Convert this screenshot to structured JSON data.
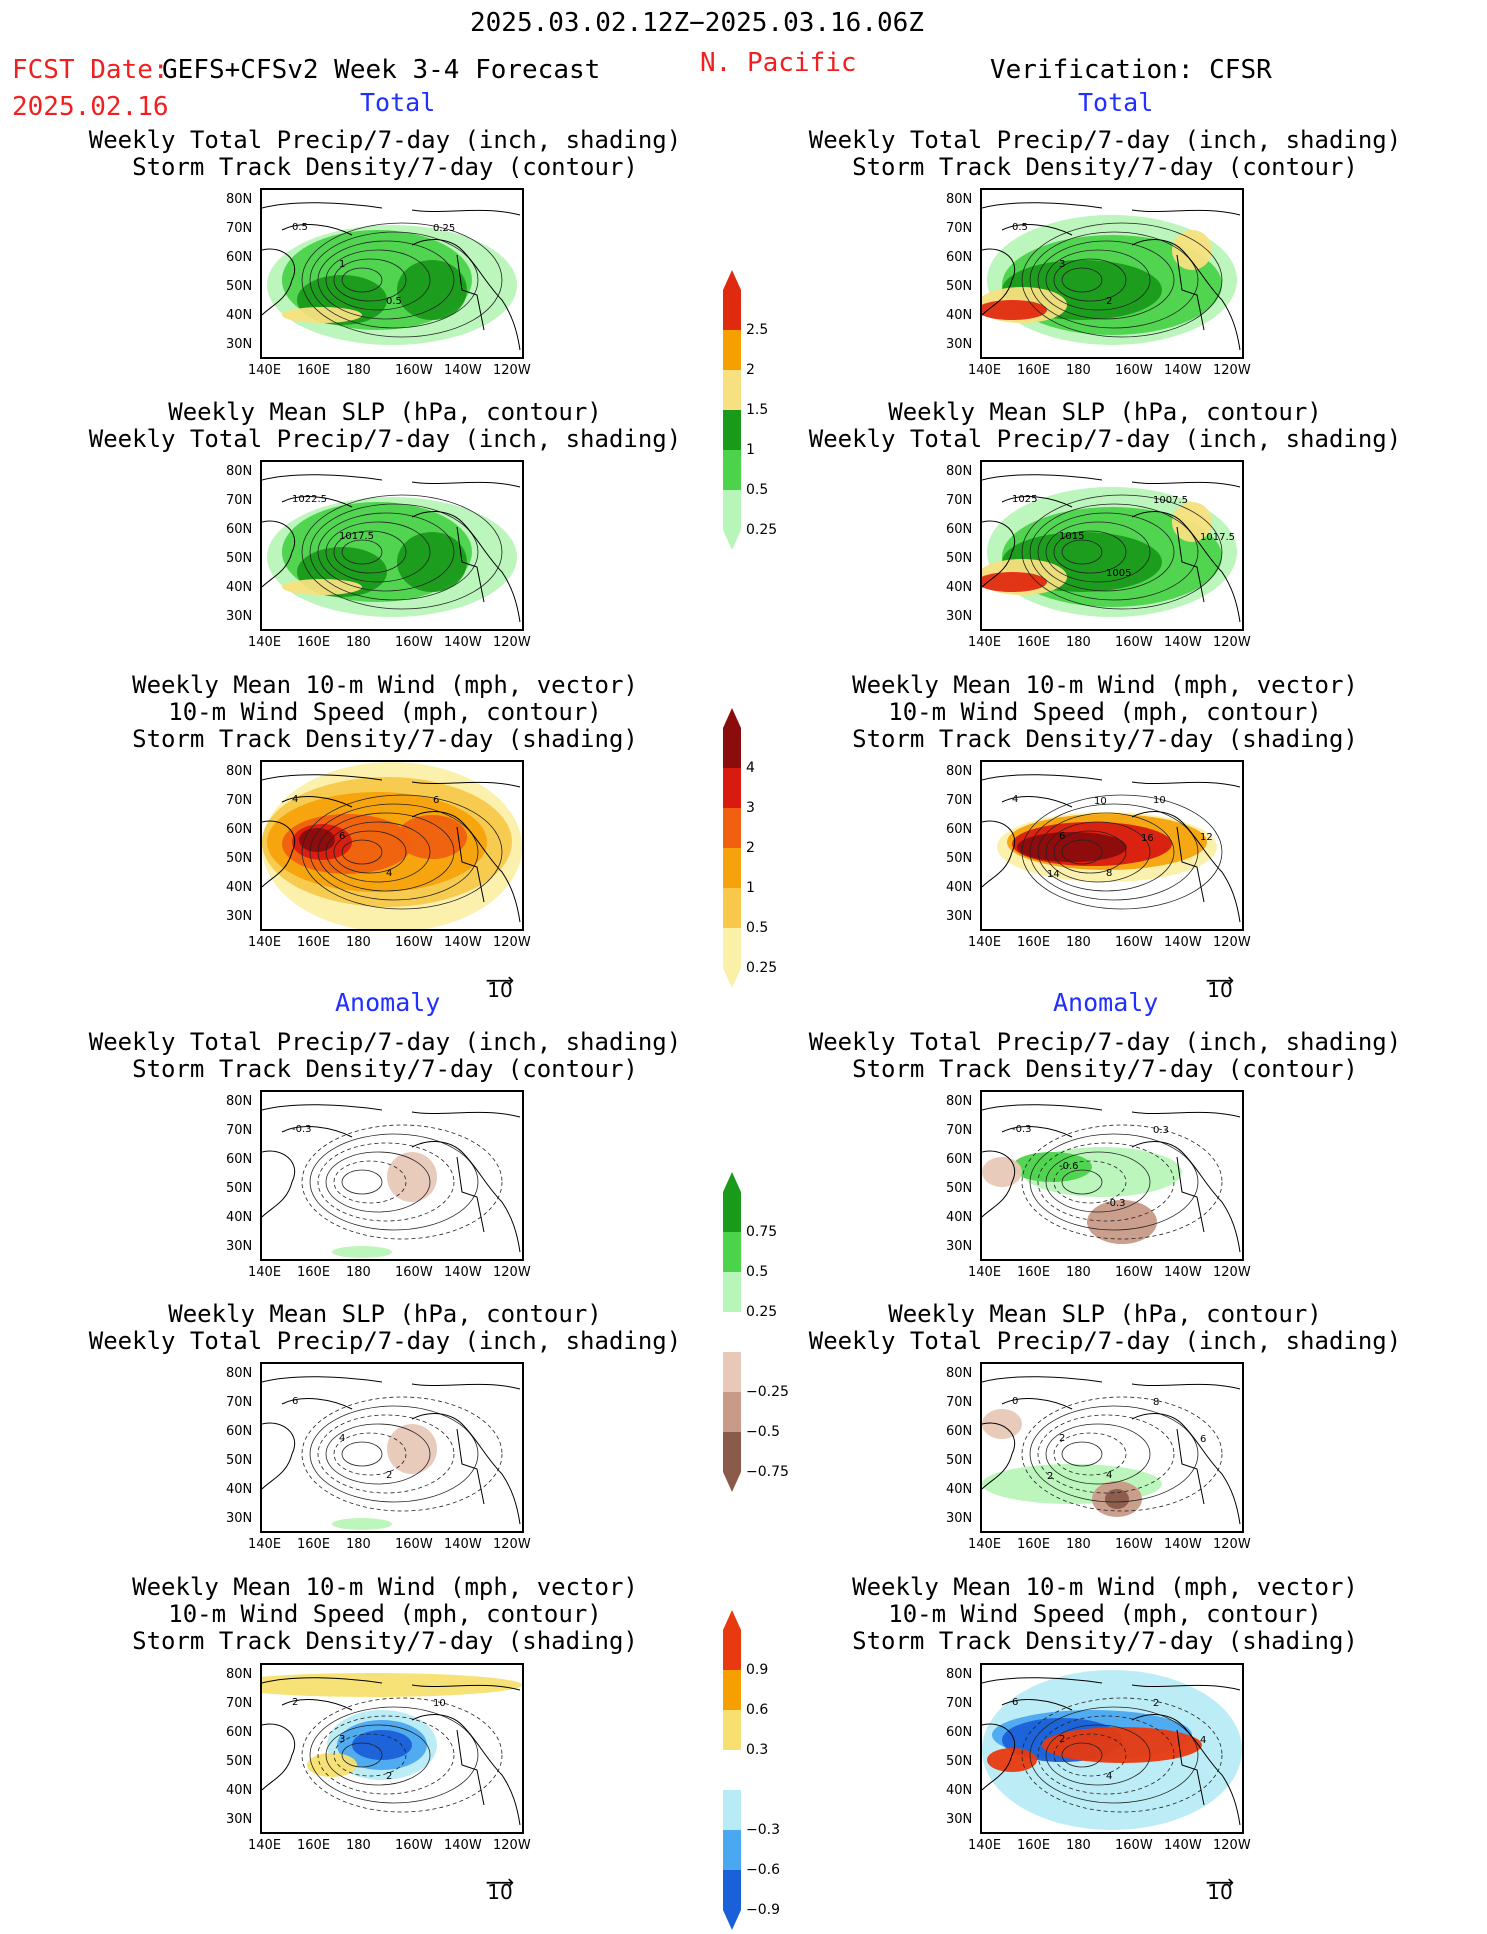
{
  "header": {
    "date_range": "2025.03.02.12Z−2025.03.16.06Z",
    "fcst_label": "FCST Date:",
    "fcst_model": "GEFS+CFSv2 Week 3-4 Forecast",
    "fcst_date": "2025.02.16",
    "region": "N. Pacific",
    "verification": "Verification: CFSR"
  },
  "sections": {
    "total": "Total",
    "anomaly": "Anomaly"
  },
  "titles": {
    "precip_storm": "Weekly Total Precip/7-day (inch, shading)\nStorm Track Density/7-day (contour)",
    "slp_precip": "Weekly Mean SLP (hPa, contour)\nWeekly Total Precip/7-day (inch, shading)",
    "wind": "Weekly Mean 10-m Wind (mph, vector)\n10-m Wind Speed (mph, contour)\nStorm Track Density/7-day (shading)"
  },
  "axes": {
    "x_ticks": [
      "140E",
      "160E",
      "180",
      "160W",
      "140W",
      "120W"
    ],
    "y_ticks": [
      "80N",
      "70N",
      "60N",
      "50N",
      "40N",
      "30N"
    ]
  },
  "vector_scale": "10",
  "colorbars": [
    {
      "id": "precip-total",
      "labels": [
        "2.5",
        "2",
        "1.5",
        "1",
        "0.5",
        "0.25"
      ],
      "colors": [
        "#e02a10",
        "#f5a000",
        "#f7e080",
        "#1a9a1a",
        "#4bd34b",
        "#b8f5b8"
      ]
    },
    {
      "id": "storm-total",
      "labels": [
        "4",
        "3",
        "2",
        "1",
        "0.5",
        "0.25"
      ],
      "colors": [
        "#8a0c0c",
        "#d81a10",
        "#f06010",
        "#f5a20c",
        "#f7c84a",
        "#fbf0a8"
      ]
    },
    {
      "id": "precip-anom",
      "labels": [
        "0.75",
        "0.5",
        "0.25",
        "−0.25",
        "−0.5",
        "−0.75"
      ],
      "colors": [
        "#1a9a1a",
        "#4bd34b",
        "#b8f5b8",
        "#ffffff",
        "#e8c8b8",
        "#c89a88",
        "#8a5a4a"
      ]
    },
    {
      "id": "storm-anom",
      "labels": [
        "0.9",
        "0.6",
        "0.3",
        "−0.3",
        "−0.6",
        "−0.9"
      ],
      "colors": [
        "#e83a10",
        "#f5a000",
        "#f7e070",
        "#ffffff",
        "#b8ecf5",
        "#4aa8f0",
        "#1a60d8"
      ]
    }
  ],
  "chart_data": [
    {
      "type": "heatmap",
      "id": "fcst-total-precip-storm",
      "contour_labels": [
        "0.5",
        "1",
        "0.5",
        "0.25"
      ],
      "precip_levels": [
        0.25,
        0.5,
        1,
        1.5,
        2,
        2.5
      ]
    },
    {
      "type": "heatmap",
      "id": "fcst-total-slp-precip",
      "contour_labels": [
        "1022.5",
        "1017.5"
      ]
    },
    {
      "type": "heatmap",
      "id": "fcst-total-wind",
      "contour_labels": [
        "4",
        "6",
        "4",
        "6"
      ]
    },
    {
      "type": "heatmap",
      "id": "ver-total-precip-storm",
      "contour_labels": [
        "0.5",
        "3",
        "2"
      ]
    },
    {
      "type": "heatmap",
      "id": "ver-total-slp-precip",
      "contour_labels": [
        "1025",
        "1015",
        "1005",
        "1007.5",
        "1017.5"
      ]
    },
    {
      "type": "heatmap",
      "id": "ver-total-wind",
      "contour_labels": [
        "4",
        "6",
        "8",
        "10",
        "12",
        "14",
        "10",
        "16"
      ]
    },
    {
      "type": "heatmap",
      "id": "fcst-anom-precip-storm",
      "contour_labels": [
        "-0.3"
      ]
    },
    {
      "type": "heatmap",
      "id": "fcst-anom-slp-precip",
      "contour_labels": [
        "6",
        "4",
        "2"
      ]
    },
    {
      "type": "heatmap",
      "id": "fcst-anom-wind",
      "contour_labels": [
        "2",
        "3",
        "2",
        "10"
      ]
    },
    {
      "type": "heatmap",
      "id": "ver-anom-precip-storm",
      "contour_labels": [
        "-0.3",
        "-0.6",
        "-0.3",
        "0.3"
      ]
    },
    {
      "type": "heatmap",
      "id": "ver-anom-slp-precip",
      "contour_labels": [
        "0",
        "2",
        "4",
        "8",
        "6",
        "2"
      ]
    },
    {
      "type": "heatmap",
      "id": "ver-anom-wind",
      "contour_labels": [
        "6",
        "2",
        "4",
        "2",
        "4"
      ]
    }
  ]
}
